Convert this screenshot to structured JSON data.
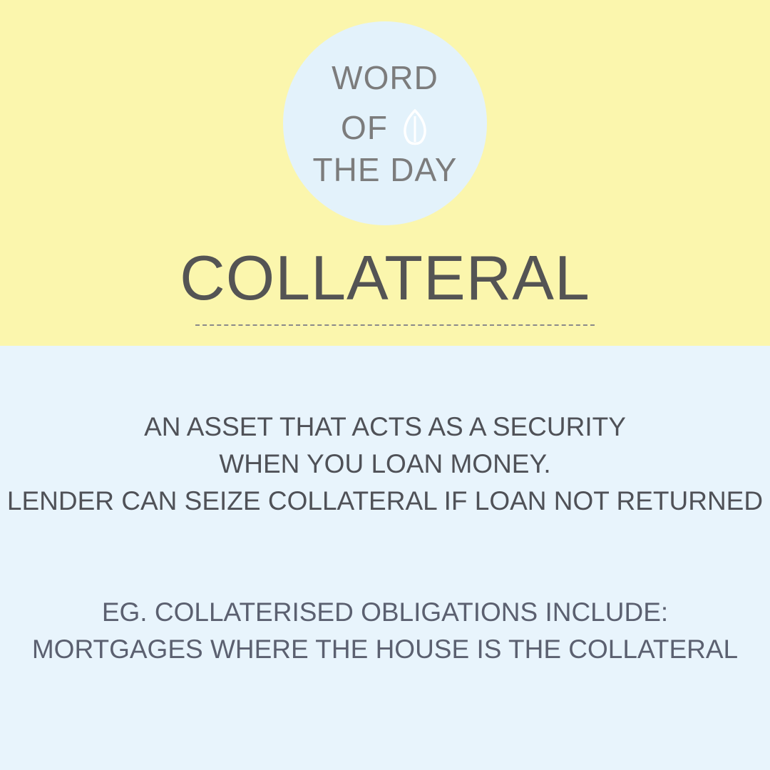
{
  "badge": {
    "line1": "WORD",
    "line2": "OF",
    "line3": "THE DAY",
    "icon": "leaf-icon"
  },
  "headword": "COLLATERAL",
  "definition": {
    "lines": [
      "AN ASSET THAT ACTS AS A SECURITY",
      "WHEN YOU LOAN MONEY.",
      "LENDER CAN SEIZE COLLATERAL IF LOAN NOT RETURNED"
    ]
  },
  "example": {
    "lines": [
      "EG. COLLATERISED OBLIGATIONS INCLUDE:",
      "MORTGAGES WHERE THE HOUSE IS THE COLLATERAL"
    ]
  },
  "colors": {
    "top_band": "#fbf6ad",
    "bottom_band": "#e8f4fc",
    "badge_circle": "#e3f2fb",
    "headword_text": "#545454",
    "body_text": "#4f5157"
  }
}
